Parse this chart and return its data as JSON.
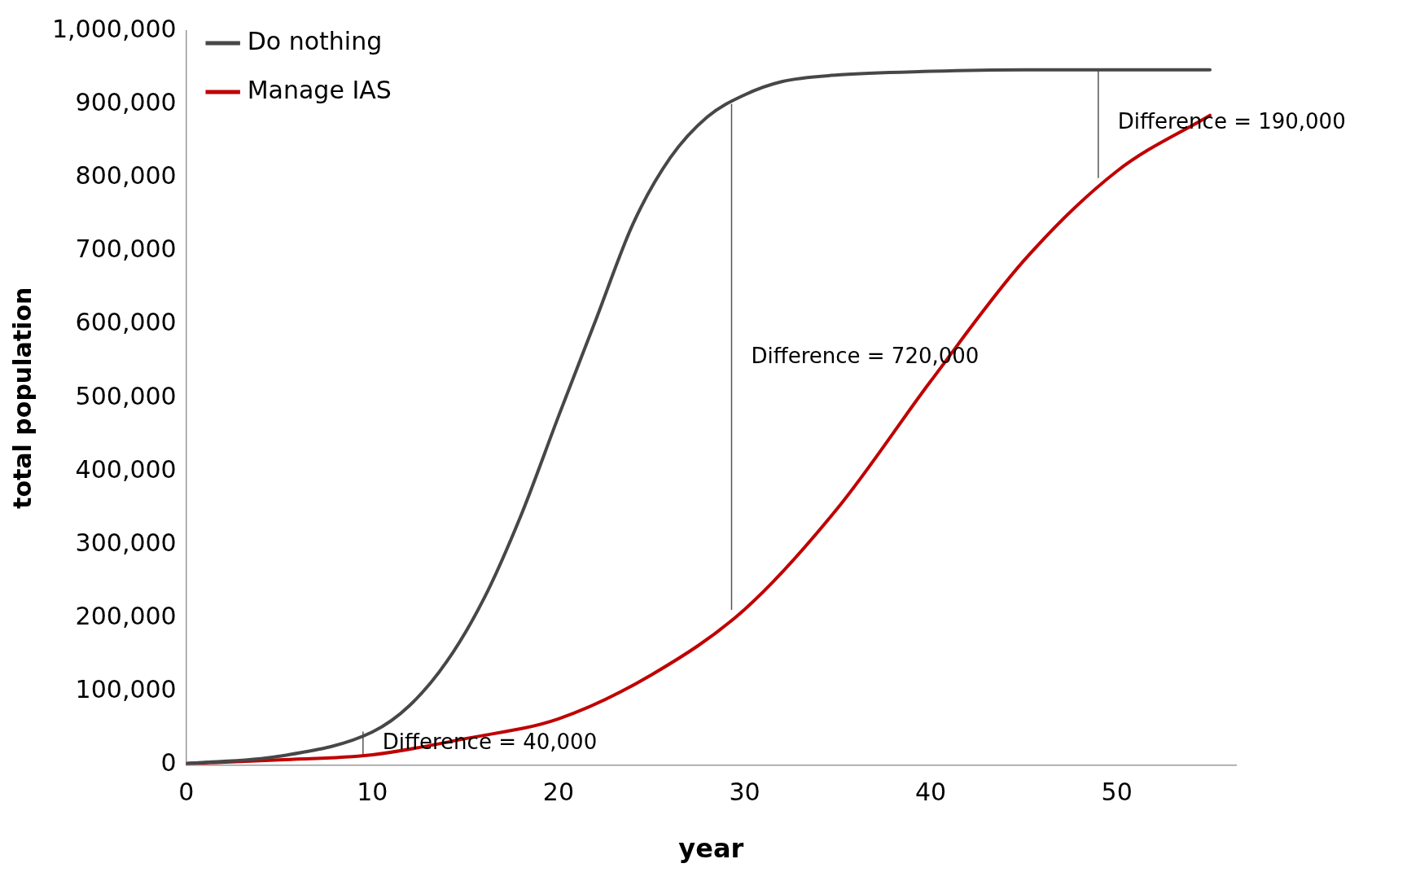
{
  "chart_data": {
    "type": "line",
    "xlabel": "year",
    "ylabel": "total population",
    "xlim": [
      0,
      56.4
    ],
    "xticks": [
      0,
      10,
      20,
      30,
      40,
      50
    ],
    "ylim": [
      0,
      1000000
    ],
    "yticks": [
      {
        "value": 0,
        "label": "0"
      },
      {
        "value": 100000,
        "label": "100,000"
      },
      {
        "value": 200000,
        "label": "200,000"
      },
      {
        "value": 300000,
        "label": "300,000"
      },
      {
        "value": 400000,
        "label": "400,000"
      },
      {
        "value": 500000,
        "label": "500,000"
      },
      {
        "value": 600000,
        "label": "600,000"
      },
      {
        "value": 700000,
        "label": "700,000"
      },
      {
        "value": 800000,
        "label": "800,000"
      },
      {
        "value": 900000,
        "label": "900,000"
      },
      {
        "value": 1000000,
        "label": "1,000,000"
      }
    ],
    "grid": false,
    "legend": "top left",
    "marker": "none",
    "line_style": "solid",
    "series": [
      {
        "name": "Do nothing",
        "color": "#474747",
        "x": [
          0,
          5,
          10,
          12,
          14,
          16,
          18,
          20,
          22,
          24,
          26,
          28,
          30,
          32,
          35,
          40,
          45,
          50,
          55
        ],
        "values": [
          2000,
          12000,
          45000,
          81000,
          141000,
          227000,
          341000,
          475000,
          606000,
          737000,
          827000,
          883000,
          913000,
          931000,
          940000,
          945000,
          947000,
          947000,
          947000
        ]
      },
      {
        "name": "Manage IAS",
        "color": "#c00000",
        "x": [
          0,
          5,
          10,
          15,
          20,
          25,
          30,
          35,
          40,
          45,
          50,
          55
        ],
        "values": [
          2000,
          7000,
          14000,
          36000,
          63000,
          123000,
          212000,
          350000,
          523000,
          687000,
          809000,
          885000
        ]
      },
      {
        "color": "#555555",
        "x": [
          9.5,
          9.5,
          9.5
        ],
        "values": [
          45000,
          29000,
          12000
        ]
      },
      {
        "color": "#555555",
        "x": [
          29.3,
          29.3,
          29.3
        ],
        "values": [
          900000,
          555000,
          212000
        ]
      },
      {
        "color": "#555555",
        "x": [
          49,
          49,
          49
        ],
        "values": [
          947000,
          874000,
          800000
        ]
      }
    ],
    "annotations": [
      {
        "text": "Difference = 40,000",
        "x": 9.5,
        "y": 29000
      },
      {
        "text": "Difference = 720,000",
        "x": 29.3,
        "y": 555000
      },
      {
        "text": "Difference = 190,000",
        "x": 49,
        "y": 874000
      }
    ]
  }
}
